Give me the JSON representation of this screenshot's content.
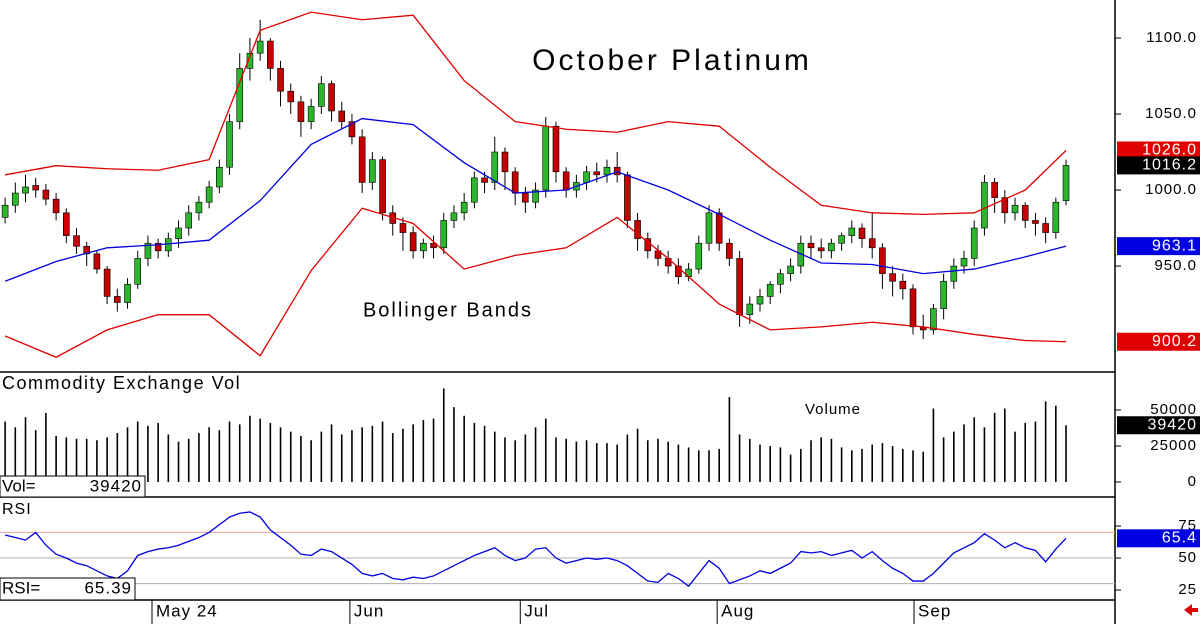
{
  "chart_data": [
    {
      "type": "candlestick",
      "title": "October Platinum",
      "annotation": "Bollinger Bands",
      "up_color": "#2db52d",
      "down_color": "#c40000",
      "open": [
        982,
        990,
        998,
        1003,
        1000,
        994,
        985,
        970,
        963,
        958,
        948,
        930,
        926,
        938,
        955,
        965,
        960,
        968,
        975,
        985,
        992,
        1002,
        1015,
        1045,
        1080,
        1090,
        1098,
        1080,
        1065,
        1058,
        1045,
        1055,
        1070,
        1052,
        1045,
        1035,
        1005,
        1020,
        985,
        978,
        972,
        960,
        965,
        962,
        980,
        985,
        992,
        1008,
        1005,
        1025,
        1012,
        998,
        992,
        1000,
        1042,
        1012,
        1000,
        1005,
        1012,
        1010,
        1015,
        1010,
        980,
        968,
        960,
        955,
        950,
        943,
        948,
        965,
        985,
        965,
        955,
        918,
        925,
        930,
        938,
        945,
        950,
        965,
        962,
        960,
        965,
        970,
        975,
        968,
        962,
        945,
        940,
        935,
        910,
        908,
        922,
        940,
        950,
        955,
        975,
        1005,
        995,
        985,
        990,
        980,
        978,
        972,
        993
      ],
      "high": [
        995,
        1005,
        1010,
        1008,
        1004,
        998,
        988,
        975,
        966,
        960,
        950,
        935,
        942,
        960,
        970,
        968,
        972,
        980,
        990,
        996,
        1006,
        1020,
        1050,
        1090,
        1100,
        1112,
        1100,
        1085,
        1070,
        1062,
        1060,
        1075,
        1072,
        1058,
        1050,
        1040,
        1025,
        1022,
        990,
        982,
        976,
        968,
        970,
        985,
        990,
        998,
        1012,
        1012,
        1035,
        1028,
        1015,
        1002,
        1005,
        1048,
        1045,
        1015,
        1010,
        1016,
        1018,
        1020,
        1025,
        1012,
        985,
        972,
        964,
        960,
        955,
        952,
        970,
        990,
        988,
        968,
        960,
        930,
        935,
        940,
        948,
        955,
        970,
        970,
        968,
        968,
        972,
        980,
        978,
        985,
        965,
        950,
        945,
        938,
        918,
        925,
        945,
        955,
        960,
        980,
        1010,
        1008,
        1000,
        995,
        992,
        985,
        982,
        995,
        1020
      ],
      "low": [
        978,
        985,
        992,
        995,
        990,
        980,
        965,
        958,
        950,
        945,
        925,
        920,
        922,
        935,
        950,
        955,
        956,
        962,
        970,
        980,
        988,
        998,
        1010,
        1040,
        1072,
        1085,
        1072,
        1055,
        1050,
        1035,
        1040,
        1050,
        1045,
        1040,
        1030,
        998,
        1000,
        980,
        970,
        960,
        955,
        955,
        955,
        958,
        975,
        980,
        988,
        998,
        1000,
        1000,
        990,
        985,
        988,
        995,
        1005,
        995,
        995,
        1000,
        1005,
        1005,
        1005,
        975,
        960,
        955,
        950,
        945,
        938,
        940,
        945,
        960,
        960,
        950,
        910,
        912,
        920,
        925,
        932,
        940,
        945,
        955,
        955,
        955,
        960,
        965,
        962,
        955,
        935,
        930,
        928,
        905,
        902,
        905,
        915,
        935,
        945,
        950,
        970,
        985,
        978,
        980,
        975,
        970,
        965,
        968,
        990
      ],
      "close": [
        990,
        998,
        1002,
        1000,
        994,
        985,
        970,
        963,
        958,
        948,
        930,
        926,
        938,
        955,
        965,
        960,
        968,
        975,
        985,
        992,
        1002,
        1015,
        1045,
        1080,
        1090,
        1098,
        1080,
        1065,
        1058,
        1045,
        1055,
        1070,
        1052,
        1045,
        1035,
        1005,
        1020,
        985,
        978,
        972,
        960,
        965,
        962,
        980,
        985,
        992,
        1008,
        1005,
        1025,
        1012,
        998,
        992,
        1000,
        1042,
        1012,
        1000,
        1005,
        1012,
        1010,
        1015,
        1010,
        980,
        968,
        960,
        955,
        950,
        943,
        948,
        965,
        985,
        965,
        955,
        918,
        925,
        930,
        938,
        945,
        950,
        965,
        962,
        960,
        965,
        970,
        975,
        968,
        962,
        945,
        940,
        935,
        910,
        908,
        922,
        940,
        950,
        955,
        975,
        1005,
        995,
        985,
        990,
        980,
        978,
        972,
        992,
        1016.2
      ],
      "series": [
        {
          "color": "#e00000",
          "last_value_label": "1026.0",
          "x": [
            0,
            5,
            10,
            15,
            20,
            25,
            30,
            35,
            40,
            45,
            50,
            55,
            60,
            65,
            70,
            75,
            80,
            85,
            90,
            95,
            100,
            104
          ],
          "values": [
            1010,
            1016,
            1014,
            1013,
            1020,
            1105,
            1117,
            1112,
            1115,
            1072,
            1045,
            1040,
            1038,
            1045,
            1042,
            1015,
            990,
            985,
            984,
            985,
            1000,
            1026
          ]
        },
        {
          "color": "#0000e0",
          "last_value_label": "963.1",
          "x": [
            0,
            5,
            10,
            15,
            20,
            25,
            30,
            35,
            40,
            45,
            50,
            55,
            60,
            65,
            70,
            75,
            80,
            85,
            90,
            95,
            100,
            104
          ],
          "values": [
            940,
            953,
            962,
            964,
            967,
            993,
            1030,
            1047,
            1043,
            1018,
            998,
            1000,
            1012,
            1000,
            984,
            967,
            952,
            951,
            945,
            948,
            956,
            963.1
          ]
        },
        {
          "color": "#e00000",
          "last_value_label": "900.2",
          "x": [
            0,
            5,
            10,
            15,
            20,
            25,
            30,
            35,
            40,
            45,
            50,
            55,
            60,
            65,
            70,
            75,
            80,
            85,
            90,
            95,
            100,
            104
          ],
          "values": [
            904,
            890,
            908,
            918,
            918,
            891,
            947,
            988,
            978,
            948,
            957,
            962,
            982,
            955,
            925,
            908,
            910,
            913,
            910,
            905,
            901,
            900.2
          ]
        }
      ],
      "xlim": [
        -0.5,
        108.8
      ],
      "xticks": [
        {
          "value": 14.4,
          "label": "May 24"
        },
        {
          "value": 33.8,
          "label": "Jun"
        },
        {
          "value": 50.5,
          "label": "Jul"
        },
        {
          "value": 69.8,
          "label": "Aug"
        },
        {
          "value": 89.1,
          "label": "Sep"
        }
      ],
      "ylim": [
        880.3,
        1125
      ],
      "yticks": [
        {
          "value": 950,
          "label": "950.0"
        },
        {
          "value": 1000,
          "label": "1000.0"
        },
        {
          "value": 1050,
          "label": "1050.0"
        },
        {
          "value": 1100,
          "label": "1100.0"
        }
      ]
    },
    {
      "type": "bar",
      "title": "Commodity Exchange Vol",
      "annotation": "Volume",
      "readout_label": "Vol=",
      "color": "#000000",
      "values": [
        42000,
        38000,
        45000,
        36000,
        48000,
        32000,
        31000,
        30000,
        30000,
        29000,
        31000,
        34000,
        38000,
        42000,
        39000,
        41000,
        33000,
        28000,
        30000,
        34000,
        38000,
        36000,
        42000,
        40000,
        46000,
        44000,
        41000,
        38000,
        35000,
        32000,
        29000,
        35000,
        40000,
        33000,
        36000,
        38000,
        39000,
        42000,
        34000,
        37000,
        40000,
        43000,
        44000,
        65000,
        52000,
        46000,
        41000,
        39000,
        35000,
        31000,
        29000,
        33000,
        38000,
        44000,
        31000,
        30000,
        28000,
        29000,
        27000,
        27000,
        26000,
        33000,
        37000,
        29000,
        30000,
        28000,
        26000,
        24000,
        22000,
        22000,
        23000,
        59000,
        33000,
        30000,
        26000,
        25000,
        24000,
        19000,
        23000,
        29000,
        31000,
        30000,
        24000,
        22000,
        23000,
        26000,
        27000,
        25000,
        23000,
        22000,
        21000,
        51000,
        31000,
        35000,
        40000,
        45000,
        38000,
        48000,
        51000,
        35000,
        41000,
        42000,
        56000,
        53000,
        39420
      ],
      "ylim": [
        -10417,
        75000
      ],
      "yticks": [
        0,
        25000,
        50000
      ]
    },
    {
      "type": "line",
      "title": "RSI",
      "readout_label": "RSI=",
      "color": "#0000e0",
      "last_value_label": "65.4",
      "values": [
        68,
        66,
        64,
        70,
        60,
        53,
        50,
        46,
        44,
        40,
        36,
        34,
        40,
        52,
        55,
        57,
        58,
        60,
        63,
        66,
        70,
        76,
        82,
        85,
        86,
        82,
        72,
        66,
        60,
        53,
        52,
        57,
        55,
        50,
        45,
        38,
        36,
        38,
        34,
        33,
        35,
        34,
        36,
        40,
        44,
        48,
        52,
        55,
        58,
        52,
        48,
        50,
        57,
        58,
        50,
        46,
        48,
        50,
        49,
        50,
        48,
        44,
        38,
        32,
        31,
        38,
        34,
        28,
        38,
        48,
        42,
        30,
        33,
        36,
        40,
        38,
        42,
        46,
        55,
        54,
        55,
        52,
        54,
        56,
        50,
        55,
        48,
        42,
        38,
        32,
        32,
        38,
        46,
        54,
        58,
        62,
        69,
        64,
        58,
        62,
        58,
        56,
        47,
        57,
        65.39
      ],
      "reference_lines": [
        30,
        50,
        70
      ],
      "ylim": [
        17.2,
        96.9
      ],
      "yticks": [
        25,
        50,
        75
      ]
    }
  ]
}
